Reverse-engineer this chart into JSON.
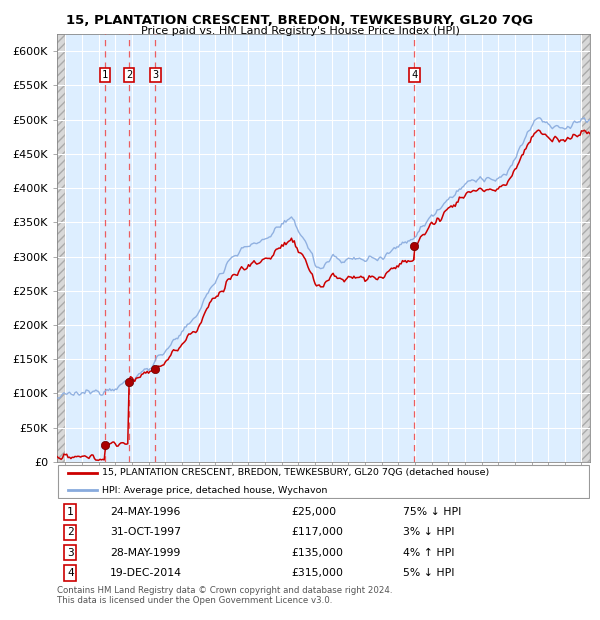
{
  "title": "15, PLANTATION CRESCENT, BREDON, TEWKESBURY, GL20 7QG",
  "subtitle": "Price paid vs. HM Land Registry's House Price Index (HPI)",
  "background_color": "#ffffff",
  "plot_bg_color": "#ddeeff",
  "grid_color": "#ffffff",
  "sale_dates": [
    1996.39,
    1997.83,
    1999.41,
    2014.96
  ],
  "sale_prices": [
    25000,
    117000,
    135000,
    315000
  ],
  "sale_labels": [
    "1",
    "2",
    "3",
    "4"
  ],
  "legend_entries": [
    "15, PLANTATION CRESCENT, BREDON, TEWKESBURY, GL20 7QG (detached house)",
    "HPI: Average price, detached house, Wychavon"
  ],
  "table_data": [
    [
      "1",
      "24-MAY-1996",
      "£25,000",
      "75% ↓ HPI"
    ],
    [
      "2",
      "31-OCT-1997",
      "£117,000",
      "3% ↓ HPI"
    ],
    [
      "3",
      "28-MAY-1999",
      "£135,000",
      "4% ↑ HPI"
    ],
    [
      "4",
      "19-DEC-2014",
      "£315,000",
      "5% ↓ HPI"
    ]
  ],
  "footer": "Contains HM Land Registry data © Crown copyright and database right 2024.\nThis data is licensed under the Open Government Licence v3.0.",
  "ylim": [
    0,
    625000
  ],
  "xlim": [
    1993.5,
    2025.5
  ],
  "yticks": [
    0,
    50000,
    100000,
    150000,
    200000,
    250000,
    300000,
    350000,
    400000,
    450000,
    500000,
    550000,
    600000
  ],
  "ytick_labels": [
    "£0",
    "£50K",
    "£100K",
    "£150K",
    "£200K",
    "£250K",
    "£300K",
    "£350K",
    "£400K",
    "£450K",
    "£500K",
    "£550K",
    "£600K"
  ],
  "xticks": [
    1994,
    1995,
    1996,
    1997,
    1998,
    1999,
    2000,
    2001,
    2002,
    2003,
    2004,
    2005,
    2006,
    2007,
    2008,
    2009,
    2010,
    2011,
    2012,
    2013,
    2014,
    2015,
    2016,
    2017,
    2018,
    2019,
    2020,
    2021,
    2022,
    2023,
    2024,
    2025
  ],
  "line_color_red": "#cc0000",
  "line_color_blue": "#88aadd",
  "dot_color": "#880000",
  "vline_color": "#ee4444",
  "label_box_color": "#cc0000"
}
